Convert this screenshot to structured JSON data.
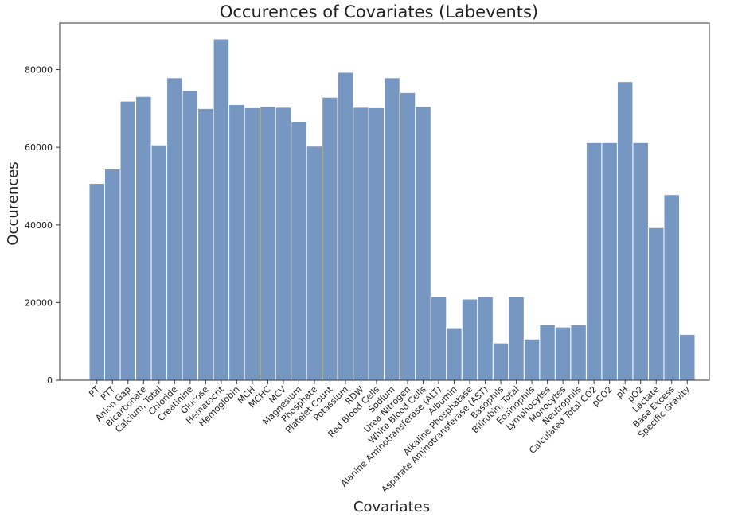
{
  "chart_data": {
    "type": "bar",
    "title": "Occurences of Covariates (Labevents)",
    "xlabel": "Covariates",
    "ylabel": "Occurences",
    "ylim": [
      0,
      92000
    ],
    "yticks": [
      0,
      20000,
      40000,
      60000,
      80000
    ],
    "grid": false,
    "bar_color": "#7797c3",
    "categories": [
      "PT",
      "PTT",
      "Anion Gap",
      "Bicarbonate",
      "Calcium, Total",
      "Chloride",
      "Creatinine",
      "Glucose",
      "Hematocrit",
      "Hemoglobin",
      "MCH",
      "MCHC",
      "MCV",
      "Magnesium",
      "Phosphate",
      "Platelet Count",
      "Potassium",
      "RDW",
      "Red Blood Cells",
      "Sodium",
      "Urea Nitrogen",
      "White Blood Cells",
      "Alanine Aminotransferase (ALT)",
      "Albumin",
      "Alkaline Phosphatase",
      "Asparate Aminotransferase (AST)",
      "Basophils",
      "Bilirubin, Total",
      "Eosinophils",
      "Lymphocytes",
      "Monocytes",
      "Neutrophils",
      "Calculated Total CO2",
      "pCO2",
      "pH",
      "pO2",
      "Lactate",
      "Base Excess",
      "Specific Gravity"
    ],
    "values": [
      50700,
      54400,
      71900,
      73100,
      60600,
      77900,
      74600,
      70000,
      87900,
      71000,
      70200,
      70500,
      70300,
      66500,
      60300,
      72900,
      79300,
      70300,
      70200,
      77900,
      74100,
      70500,
      21500,
      13500,
      20900,
      21500,
      9600,
      21500,
      10600,
      14300,
      13700,
      14300,
      61200,
      61200,
      76900,
      61200,
      39300,
      47800,
      11800
    ]
  }
}
